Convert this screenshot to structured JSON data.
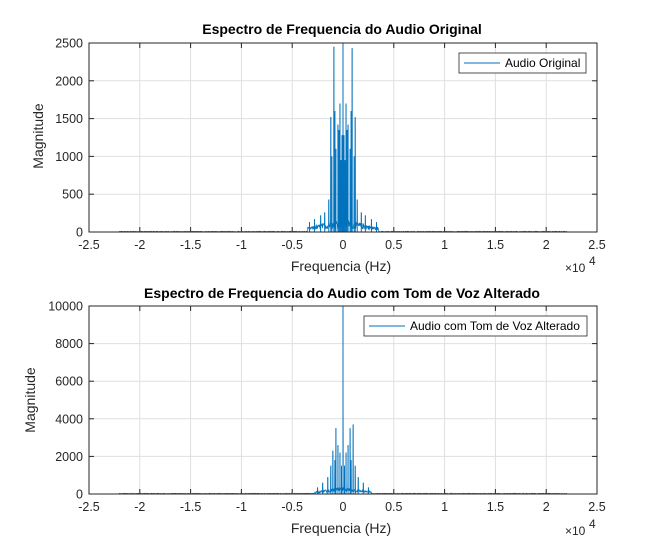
{
  "chart_data": [
    {
      "type": "line",
      "title": "Espectro de Frequencia do Audio Original",
      "xlabel": "Frequencia (Hz)",
      "ylabel": "Magnitude",
      "x_exponent_label": "×10",
      "x_exponent_power": "4",
      "xlim": [
        -2.5,
        2.5
      ],
      "ylim": [
        0,
        2500
      ],
      "xticks": [
        "-2.5",
        "-2",
        "-1.5",
        "-1",
        "-0.5",
        "0",
        "0.5",
        "1",
        "1.5",
        "2",
        "2.5"
      ],
      "yticks": [
        "0",
        "500",
        "1000",
        "1500",
        "2000",
        "2500"
      ],
      "grid": true,
      "legend_position": "top-right",
      "series": [
        {
          "name": "Audio Original",
          "color": "#0072BD",
          "x": [
            -2.205,
            2.205
          ],
          "noise_floor": 10,
          "band": [
            -0.35,
            0.35
          ],
          "band_level": 150,
          "peaks": [
            [
              -0.33,
              130
            ],
            [
              -0.28,
              170
            ],
            [
              -0.22,
              220
            ],
            [
              -0.18,
              260
            ],
            [
              -0.14,
              430
            ],
            [
              -0.12,
              1520
            ],
            [
              -0.11,
              1000
            ],
            [
              -0.09,
              2450
            ],
            [
              -0.08,
              1600
            ],
            [
              -0.07,
              1100
            ],
            [
              -0.05,
              1420
            ],
            [
              -0.04,
              1350
            ],
            [
              -0.03,
              1700
            ],
            [
              -0.02,
              950
            ],
            [
              -0.01,
              1280
            ],
            [
              0.0,
              2500
            ],
            [
              0.01,
              1280
            ],
            [
              0.02,
              950
            ],
            [
              0.03,
              1700
            ],
            [
              0.04,
              1350
            ],
            [
              0.05,
              1420
            ],
            [
              0.07,
              1100
            ],
            [
              0.08,
              1600
            ],
            [
              0.09,
              2430
            ],
            [
              0.11,
              1000
            ],
            [
              0.12,
              1520
            ],
            [
              0.14,
              430
            ],
            [
              0.18,
              260
            ],
            [
              0.22,
              220
            ],
            [
              0.28,
              170
            ],
            [
              0.33,
              130
            ]
          ]
        }
      ]
    },
    {
      "type": "line",
      "title": "Espectro de Frequencia do Audio com Tom de Voz Alterado",
      "xlabel": "Frequencia (Hz)",
      "ylabel": "Magnitude",
      "x_exponent_label": "×10",
      "x_exponent_power": "4",
      "xlim": [
        -2.5,
        2.5
      ],
      "ylim": [
        0,
        10000
      ],
      "xticks": [
        "-2.5",
        "-2",
        "-1.5",
        "-1",
        "-0.5",
        "0",
        "0.5",
        "1",
        "1.5",
        "2",
        "2.5"
      ],
      "yticks": [
        "0",
        "2000",
        "4000",
        "6000",
        "8000",
        "10000"
      ],
      "grid": true,
      "legend_position": "top-right",
      "series": [
        {
          "name": "Audio com Tom de Voz Alterado",
          "color": "#0072BD",
          "x": [
            -2.205,
            2.205
          ],
          "noise_floor": 40,
          "band": [
            -0.28,
            0.28
          ],
          "band_level": 300,
          "peaks": [
            [
              -0.25,
              350
            ],
            [
              -0.2,
              600
            ],
            [
              -0.15,
              900
            ],
            [
              -0.12,
              1500
            ],
            [
              -0.1,
              2300
            ],
            [
              -0.08,
              1800
            ],
            [
              -0.07,
              3500
            ],
            [
              -0.05,
              2600
            ],
            [
              -0.03,
              2200
            ],
            [
              -0.015,
              1500
            ],
            [
              0.0,
              10000
            ],
            [
              0.015,
              1500
            ],
            [
              0.03,
              2200
            ],
            [
              0.05,
              2600
            ],
            [
              0.07,
              3500
            ],
            [
              0.08,
              1800
            ],
            [
              0.1,
              3700
            ],
            [
              0.12,
              1500
            ],
            [
              0.15,
              900
            ],
            [
              0.2,
              600
            ],
            [
              0.25,
              350
            ]
          ]
        }
      ]
    }
  ]
}
